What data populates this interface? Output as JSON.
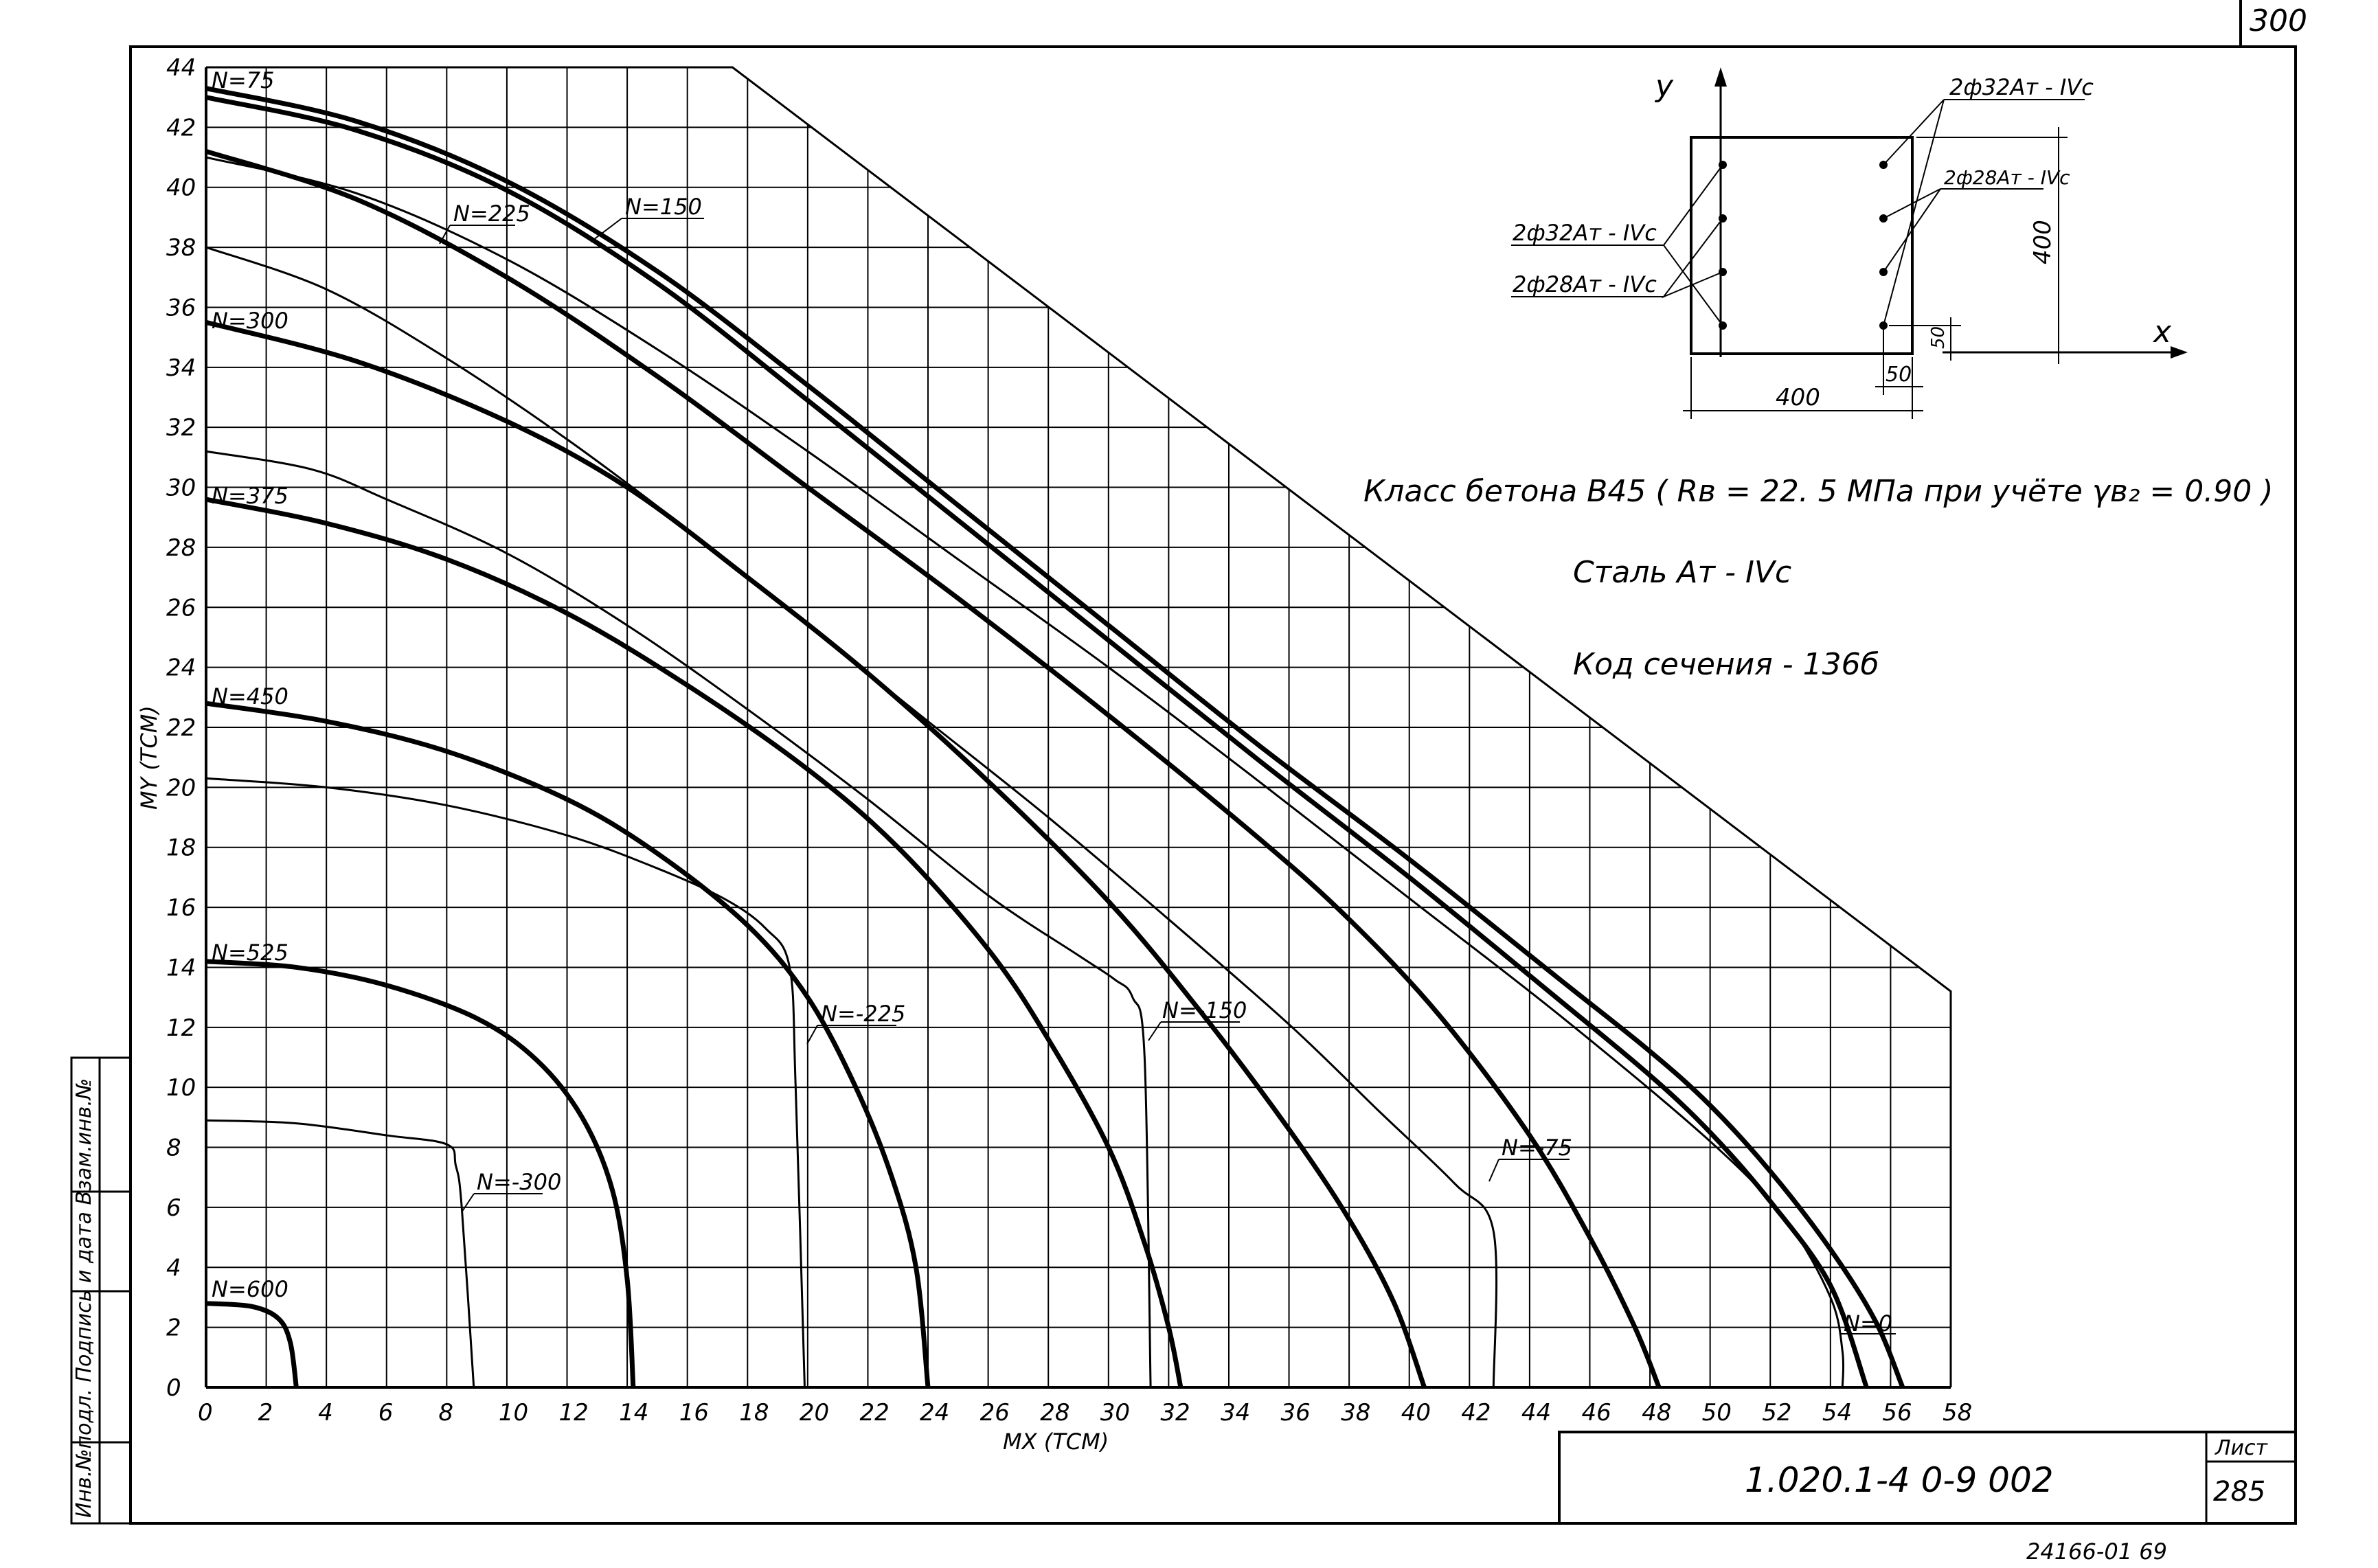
{
  "page": {
    "sheet_number_top": "300",
    "stamp_number": "1.020.1-4    0-9  002",
    "sheet_label": "Лист",
    "sheet_value": "285",
    "bottom_code": "24166-01  69",
    "margin_table_text": "Инв.№подл. Подпись и дата Взам.инв.№"
  },
  "chart_data": {
    "type": "line",
    "xlabel": "MX (TCM)",
    "ylabel": "MY (TCM)",
    "xlim": [
      0,
      58
    ],
    "ylim": [
      0,
      44
    ],
    "x_ticks": [
      "0",
      "2",
      "4",
      "6",
      "8",
      "10",
      "12",
      "14",
      "16",
      "18",
      "20",
      "22",
      "24",
      "26",
      "28",
      "30",
      "32",
      "34",
      "36",
      "38",
      "40",
      "42",
      "44",
      "46",
      "48",
      "50",
      "52",
      "54",
      "56",
      "58"
    ],
    "y_ticks": [
      "0",
      "2",
      "4",
      "6",
      "8",
      "10",
      "12",
      "14",
      "16",
      "18",
      "20",
      "22",
      "24",
      "26",
      "28",
      "30",
      "32",
      "34",
      "36",
      "38",
      "40",
      "42",
      "44"
    ],
    "boundary": [
      [
        0,
        44
      ],
      [
        17.5,
        44
      ],
      [
        58,
        13.2
      ],
      [
        58,
        0
      ]
    ],
    "series": [
      {
        "name": "N=75",
        "weight": "bold",
        "points": [
          [
            0,
            43.3
          ],
          [
            5,
            42.2
          ],
          [
            10,
            40.2
          ],
          [
            15,
            37.2
          ],
          [
            20,
            33.4
          ],
          [
            25,
            29.4
          ],
          [
            30,
            25.4
          ],
          [
            35,
            21.4
          ],
          [
            40,
            17.6
          ],
          [
            45,
            13.6
          ],
          [
            48,
            11.2
          ],
          [
            50,
            9.4
          ],
          [
            52,
            7.2
          ],
          [
            54,
            4.6
          ],
          [
            55.5,
            2.2
          ],
          [
            56.4,
            0
          ]
        ]
      },
      {
        "name": "N=150",
        "weight": "bold",
        "points": [
          [
            0,
            43.0
          ],
          [
            5,
            41.9
          ],
          [
            10,
            39.9
          ],
          [
            15,
            36.8
          ],
          [
            20,
            32.9
          ],
          [
            25,
            28.9
          ],
          [
            30,
            24.9
          ],
          [
            35,
            20.9
          ],
          [
            40,
            17.0
          ],
          [
            45,
            12.9
          ],
          [
            48,
            10.4
          ],
          [
            50,
            8.5
          ],
          [
            52,
            6.2
          ],
          [
            54,
            3.4
          ],
          [
            55.2,
            0
          ]
        ]
      },
      {
        "name": "N=225",
        "weight": "bold",
        "points": [
          [
            0,
            41.2
          ],
          [
            5,
            39.6
          ],
          [
            10,
            37.0
          ],
          [
            15,
            33.7
          ],
          [
            20,
            30.0
          ],
          [
            25,
            26.3
          ],
          [
            30,
            22.4
          ],
          [
            35,
            18.3
          ],
          [
            38,
            15.6
          ],
          [
            41,
            12.4
          ],
          [
            44,
            8.4
          ],
          [
            46,
            5.0
          ],
          [
            47.5,
            2.0
          ],
          [
            48.3,
            0
          ]
        ]
      },
      {
        "name": "N=300",
        "weight": "bold",
        "points": [
          [
            0,
            35.5
          ],
          [
            5,
            34.2
          ],
          [
            10,
            32.2
          ],
          [
            14,
            30.0
          ],
          [
            18,
            27.0
          ],
          [
            22,
            23.8
          ],
          [
            26,
            20.2
          ],
          [
            30,
            16.2
          ],
          [
            33,
            12.6
          ],
          [
            36,
            8.6
          ],
          [
            38,
            5.6
          ],
          [
            39.5,
            2.8
          ],
          [
            40.5,
            0
          ]
        ]
      },
      {
        "name": "N=375",
        "weight": "bold",
        "points": [
          [
            0,
            29.6
          ],
          [
            4,
            28.8
          ],
          [
            8,
            27.6
          ],
          [
            12,
            25.8
          ],
          [
            16,
            23.4
          ],
          [
            20,
            20.6
          ],
          [
            23,
            18.0
          ],
          [
            26,
            14.6
          ],
          [
            28,
            11.6
          ],
          [
            30,
            8.0
          ],
          [
            31.2,
            4.8
          ],
          [
            32,
            2.0
          ],
          [
            32.4,
            0
          ]
        ]
      },
      {
        "name": "N=450",
        "weight": "bold",
        "points": [
          [
            0,
            22.8
          ],
          [
            4,
            22.2
          ],
          [
            8,
            21.2
          ],
          [
            12,
            19.6
          ],
          [
            15,
            17.8
          ],
          [
            18,
            15.4
          ],
          [
            20,
            13.0
          ],
          [
            21.6,
            10.0
          ],
          [
            22.8,
            7.0
          ],
          [
            23.6,
            4.0
          ],
          [
            24,
            0
          ]
        ]
      },
      {
        "name": "N=525",
        "weight": "bold",
        "points": [
          [
            0,
            14.2
          ],
          [
            3,
            14.0
          ],
          [
            6,
            13.4
          ],
          [
            9,
            12.3
          ],
          [
            11,
            10.9
          ],
          [
            12.5,
            9.0
          ],
          [
            13.5,
            6.6
          ],
          [
            14,
            3.6
          ],
          [
            14.2,
            0
          ]
        ]
      },
      {
        "name": "N=600",
        "weight": "bold",
        "points": [
          [
            0,
            2.8
          ],
          [
            1.5,
            2.7
          ],
          [
            2.4,
            2.3
          ],
          [
            2.8,
            1.5
          ],
          [
            3,
            0
          ]
        ]
      },
      {
        "name": "N=0",
        "weight": "thin",
        "points": [
          [
            0,
            41.0
          ],
          [
            5,
            39.8
          ],
          [
            10,
            37.6
          ],
          [
            15,
            34.6
          ],
          [
            20,
            31.2
          ],
          [
            25,
            27.6
          ],
          [
            30,
            24.0
          ],
          [
            35,
            20.2
          ],
          [
            40,
            16.3
          ],
          [
            45,
            12.4
          ],
          [
            50,
            8.2
          ],
          [
            52.5,
            5.6
          ],
          [
            54,
            3.0
          ],
          [
            54.4,
            1.2
          ],
          [
            54.4,
            0
          ]
        ]
      },
      {
        "name": "N=-75",
        "weight": "thin",
        "points": [
          [
            0,
            38.0
          ],
          [
            4,
            36.6
          ],
          [
            8,
            34.3
          ],
          [
            12,
            31.6
          ],
          [
            16,
            28.6
          ],
          [
            20,
            25.4
          ],
          [
            24,
            22.2
          ],
          [
            28,
            19.0
          ],
          [
            32,
            15.6
          ],
          [
            36,
            12.1
          ],
          [
            39,
            9.2
          ],
          [
            41.5,
            6.8
          ],
          [
            42.8,
            5.2
          ],
          [
            42.8,
            0
          ]
        ]
      },
      {
        "name": "N=-150",
        "weight": "thin",
        "points": [
          [
            0,
            31.2
          ],
          [
            3.5,
            30.6
          ],
          [
            6,
            29.6
          ],
          [
            10,
            27.8
          ],
          [
            14,
            25.4
          ],
          [
            18,
            22.6
          ],
          [
            22,
            19.6
          ],
          [
            26,
            16.4
          ],
          [
            29,
            14.4
          ],
          [
            30.2,
            13.6
          ],
          [
            30.8,
            13.0
          ],
          [
            31.2,
            11.0
          ],
          [
            31.4,
            0
          ]
        ]
      },
      {
        "name": "N=-225",
        "weight": "thin",
        "points": [
          [
            0,
            20.3
          ],
          [
            4,
            20.0
          ],
          [
            8,
            19.4
          ],
          [
            12,
            18.4
          ],
          [
            15,
            17.3
          ],
          [
            17.2,
            16.3
          ],
          [
            18.6,
            15.3
          ],
          [
            19.4,
            14.0
          ],
          [
            19.6,
            10.0
          ],
          [
            19.9,
            0
          ]
        ]
      },
      {
        "name": "N=-300",
        "weight": "thin",
        "points": [
          [
            0,
            8.9
          ],
          [
            3,
            8.8
          ],
          [
            6,
            8.4
          ],
          [
            8,
            8.1
          ],
          [
            8.3,
            7.4
          ],
          [
            8.5,
            6.0
          ],
          [
            8.9,
            0
          ]
        ]
      }
    ]
  },
  "labels": {
    "curve_labels": [
      "N=75",
      "N=150",
      "N=225",
      "N=300",
      "N=375",
      "N=450",
      "N=525",
      "N=600",
      "N=0",
      "N=-75",
      "N=-150",
      "N=-225",
      "N=-300"
    ],
    "concrete_class": "Класс бетона  B45   ( Rв = 22. 5 МПа при учёте γв₂ = 0.90 )",
    "steel": "Сталь  Aт - IVc",
    "section_code": "Код  сечения - 136б"
  },
  "section": {
    "axis_y": "y",
    "axis_x": "x",
    "rebar_right_top": "2ф32Aт - IVc",
    "rebar_right_mid": "2ф28Aт - IVc",
    "rebar_left_top": "2ф32Aт - IVc",
    "rebar_left_mid": "2ф28Aт - IVc",
    "dim_width": "400",
    "dim_height": "400",
    "dim_cover_x": "50",
    "dim_cover_y": "50"
  }
}
